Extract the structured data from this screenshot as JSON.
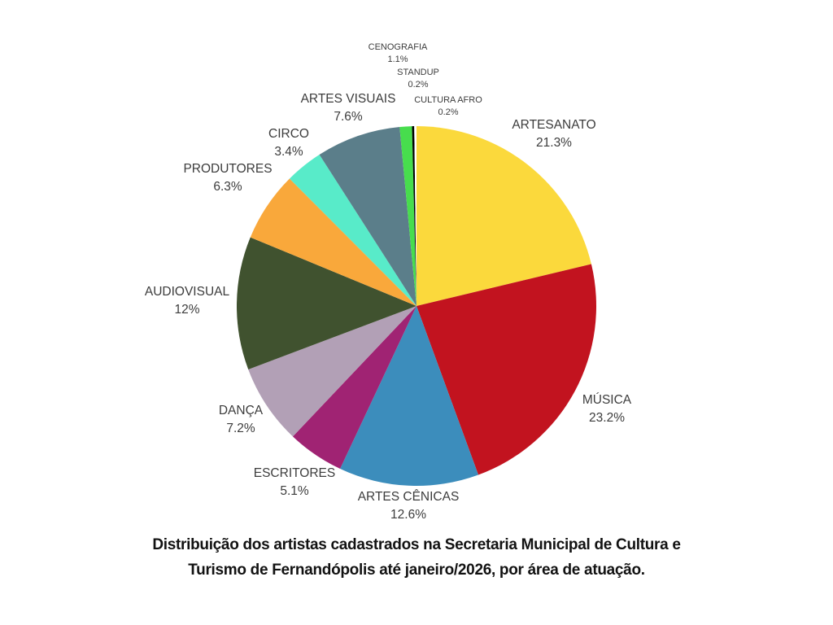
{
  "chart_data": {
    "type": "pie",
    "title": "Distribuição dos artistas cadastrados na Secretaria Municipal de Cultura e Turismo de Fernandópolis até janeiro/2026, por área de atuação.",
    "legend_position": "none",
    "labels_position": "outside",
    "start_angle_deg": 0,
    "direction": "clockwise",
    "slices": [
      {
        "id": "artesanato",
        "label": "ARTESANATO",
        "pct_label": "21.3%",
        "value": 21.3,
        "color": "#FBD93C"
      },
      {
        "id": "musica",
        "label": "MÚSICA",
        "pct_label": "23.2%",
        "value": 23.2,
        "color": "#C2131F"
      },
      {
        "id": "artes-cenicas",
        "label": "ARTES CÊNICAS",
        "pct_label": "12.6%",
        "value": 12.6,
        "color": "#3C8DBC"
      },
      {
        "id": "escritores",
        "label": "ESCRITORES",
        "pct_label": "5.1%",
        "value": 5.1,
        "color": "#A02373"
      },
      {
        "id": "danca",
        "label": "DANÇA",
        "pct_label": "7.2%",
        "value": 7.2,
        "color": "#B2A0B6"
      },
      {
        "id": "audiovisual",
        "label": "AUDIOVISUAL",
        "pct_label": "12%",
        "value": 12.0,
        "color": "#40522F"
      },
      {
        "id": "produtores",
        "label": "PRODUTORES",
        "pct_label": "6.3%",
        "value": 6.3,
        "color": "#F9A83B"
      },
      {
        "id": "circo",
        "label": "CIRCO",
        "pct_label": "3.4%",
        "value": 3.4,
        "color": "#58EBC9"
      },
      {
        "id": "artes-visuais",
        "label": "ARTES VISUAIS",
        "pct_label": "7.6%",
        "value": 7.6,
        "color": "#5B7E8A"
      },
      {
        "id": "cenografia",
        "label": "CENOGRAFIA",
        "pct_label": "1.1%",
        "value": 1.1,
        "color": "#47DD4D"
      },
      {
        "id": "standup",
        "label": "STANDUP",
        "pct_label": "0.2%",
        "value": 0.2,
        "color": "#000000"
      },
      {
        "id": "cultura-afro",
        "label": "CULTURA AFRO",
        "pct_label": "0.2%",
        "value": 0.2,
        "color": "#FFFFFF"
      }
    ]
  },
  "caption": {
    "line1": "Distribuição dos artistas cadastrados na Secretaria Municipal de Cultura e",
    "line2": "Turismo de Fernandópolis até janeiro/2026, por área de atuação."
  }
}
